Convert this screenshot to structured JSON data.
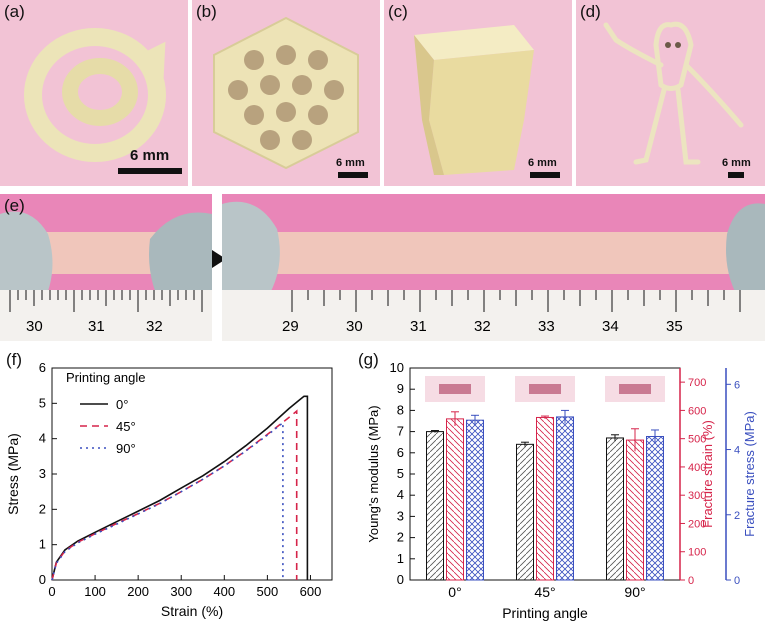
{
  "panels": {
    "a": {
      "label": "(a)",
      "scale": "6 mm"
    },
    "b": {
      "label": "(b)",
      "scale": "6 mm"
    },
    "c": {
      "label": "(c)",
      "scale": "6 mm"
    },
    "d": {
      "label": "(d)",
      "scale": "6 mm"
    },
    "e": {
      "label": "(e)",
      "ruler_left": [
        "30",
        "31",
        "32"
      ],
      "ruler_right": [
        "29",
        "30",
        "31",
        "32",
        "33",
        "34",
        "35"
      ]
    },
    "f": {
      "label": "(f)"
    },
    "g": {
      "label": "(g)"
    }
  },
  "colors": {
    "black": "#111111",
    "red": "#d6244a",
    "blue": "#3a4fbf",
    "pink": "#f0c8d8"
  },
  "chart_data": [
    {
      "type": "line",
      "xlabel": "Strain (%)",
      "ylabel": "Stress (MPa)",
      "xlim": [
        0,
        650
      ],
      "ylim": [
        0,
        6
      ],
      "xticks": [
        "0",
        "100",
        "200",
        "300",
        "400",
        "500",
        "600"
      ],
      "yticks": [
        "0",
        "1",
        "2",
        "3",
        "4",
        "5",
        "6"
      ],
      "legend_title": "Printing angle",
      "legend_position": "top-left",
      "series": [
        {
          "name": "0°",
          "style": "solid",
          "color": "#111111",
          "points": [
            [
              0,
              0
            ],
            [
              10,
              0.5
            ],
            [
              30,
              0.85
            ],
            [
              60,
              1.1
            ],
            [
              100,
              1.35
            ],
            [
              150,
              1.65
            ],
            [
              200,
              1.95
            ],
            [
              250,
              2.25
            ],
            [
              300,
              2.6
            ],
            [
              350,
              2.95
            ],
            [
              400,
              3.35
            ],
            [
              450,
              3.8
            ],
            [
              500,
              4.3
            ],
            [
              550,
              4.85
            ],
            [
              575,
              5.1
            ],
            [
              585,
              5.2
            ],
            [
              593,
              5.2
            ],
            [
              593,
              0
            ]
          ]
        },
        {
          "name": "45°",
          "style": "dashed",
          "color": "#d6244a",
          "points": [
            [
              0,
              0
            ],
            [
              10,
              0.48
            ],
            [
              30,
              0.82
            ],
            [
              60,
              1.07
            ],
            [
              100,
              1.31
            ],
            [
              150,
              1.6
            ],
            [
              200,
              1.88
            ],
            [
              250,
              2.17
            ],
            [
              300,
              2.5
            ],
            [
              350,
              2.85
            ],
            [
              400,
              3.23
            ],
            [
              450,
              3.66
            ],
            [
              500,
              4.12
            ],
            [
              550,
              4.6
            ],
            [
              568,
              4.78
            ],
            [
              568,
              0
            ]
          ]
        },
        {
          "name": "90°",
          "style": "dotted",
          "color": "#3a4fbf",
          "points": [
            [
              0,
              0
            ],
            [
              10,
              0.47
            ],
            [
              30,
              0.8
            ],
            [
              60,
              1.05
            ],
            [
              100,
              1.3
            ],
            [
              150,
              1.58
            ],
            [
              200,
              1.87
            ],
            [
              250,
              2.16
            ],
            [
              300,
              2.5
            ],
            [
              350,
              2.85
            ],
            [
              400,
              3.23
            ],
            [
              450,
              3.65
            ],
            [
              500,
              4.1
            ],
            [
              536,
              4.45
            ],
            [
              536,
              0
            ]
          ]
        }
      ]
    },
    {
      "type": "bar",
      "xlabel": "Printing angle",
      "categories": [
        "0°",
        "45°",
        "90°"
      ],
      "axes": [
        {
          "label": "Young's modulus (MPa)",
          "side": "left",
          "color": "#111111",
          "ylim": [
            0,
            10
          ],
          "ticks": [
            "0",
            "1",
            "2",
            "3",
            "4",
            "5",
            "6",
            "7",
            "8",
            "9",
            "10"
          ]
        },
        {
          "label": "Fracture strain (%)",
          "side": "right",
          "color": "#d6244a",
          "ylim": [
            0,
            750
          ],
          "ticks": [
            "0",
            "100",
            "200",
            "300",
            "400",
            "500",
            "600",
            "700"
          ]
        },
        {
          "label": "Fracture stress (MPa)",
          "side": "right-outer",
          "color": "#3a4fbf",
          "ylim": [
            0,
            6.5
          ],
          "ticks": [
            "0",
            "2",
            "4",
            "6"
          ]
        }
      ],
      "series": [
        {
          "axis": 0,
          "color": "#111111",
          "values": [
            7.0,
            6.4,
            6.7
          ],
          "errors": [
            0.05,
            0.1,
            0.15
          ]
        },
        {
          "axis": 1,
          "color": "#d6244a",
          "values": [
            570,
            575,
            495
          ],
          "errors": [
            25,
            5,
            40
          ]
        },
        {
          "axis": 2,
          "color": "#3a4fbf",
          "values": [
            4.9,
            5.0,
            4.4
          ],
          "errors": [
            0.15,
            0.2,
            0.2
          ]
        }
      ]
    }
  ]
}
